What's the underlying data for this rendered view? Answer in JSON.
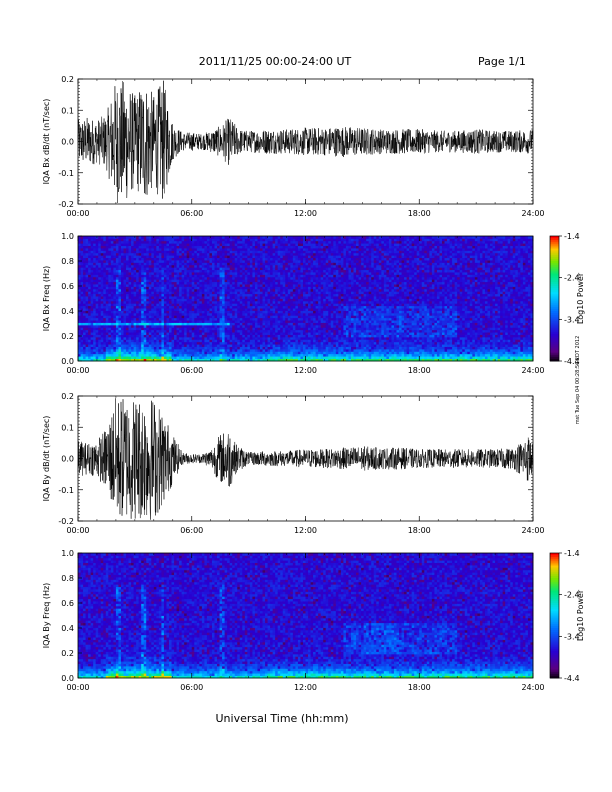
{
  "header": {
    "title": "2011/11/25  00:00-24:00 UT",
    "page": "Page 1/1"
  },
  "footer": {
    "xlabel": "Universal Time (hh:mm)"
  },
  "side_note": "mst Tue Sep 04 00:28:56 EDT 2012",
  "chart_data": [
    {
      "type": "line",
      "ylabel": "IQA Bx dB/dt (nT/sec)",
      "xlabel": "",
      "x_ticks": [
        "00:00",
        "06:00",
        "12:00",
        "18:00",
        "24:00"
      ],
      "xlim": [
        0,
        24
      ],
      "ylim": [
        -0.2,
        0.2
      ],
      "y_ticks": [
        "0.2",
        "0.1",
        "0.0",
        "-0.1",
        "-0.2"
      ],
      "series": [
        {
          "values_note": "",
          "envelope": [
            [
              0,
              0.07
            ],
            [
              0.5,
              0.08
            ],
            [
              1,
              0.07
            ],
            [
              1.5,
              0.09
            ],
            [
              2,
              0.2
            ],
            [
              2.5,
              0.2
            ],
            [
              3,
              0.15
            ],
            [
              3.5,
              0.2
            ],
            [
              4,
              0.15
            ],
            [
              4.5,
              0.2
            ],
            [
              5,
              0.06
            ],
            [
              5.5,
              0.03
            ],
            [
              6,
              0.03
            ],
            [
              6.5,
              0.025
            ],
            [
              7,
              0.035
            ],
            [
              7.5,
              0.05
            ],
            [
              8,
              0.08
            ],
            [
              8.5,
              0.04
            ],
            [
              9,
              0.035
            ],
            [
              10,
              0.04
            ],
            [
              11,
              0.04
            ],
            [
              12,
              0.045
            ],
            [
              13,
              0.045
            ],
            [
              14,
              0.05
            ],
            [
              15,
              0.045
            ],
            [
              16,
              0.04
            ],
            [
              17,
              0.04
            ],
            [
              18,
              0.04
            ],
            [
              19,
              0.035
            ],
            [
              20,
              0.035
            ],
            [
              21,
              0.04
            ],
            [
              22,
              0.035
            ],
            [
              23,
              0.035
            ],
            [
              24,
              0.04
            ]
          ]
        }
      ]
    },
    {
      "type": "heatmap",
      "ylabel": "IQA Bx Freq (Hz)",
      "x_ticks": [
        "00:00",
        "06:00",
        "12:00",
        "18:00",
        "24:00"
      ],
      "xlim": [
        0,
        24
      ],
      "ylim": [
        0,
        1.0
      ],
      "y_ticks": [
        "1.0",
        "0.8",
        "0.6",
        "0.4",
        "0.2",
        "0.0"
      ],
      "colorbar": {
        "label": "Log10 Power",
        "ticks": [
          "-1.4",
          "-2.4",
          "-3.4",
          "-4.4"
        ],
        "range": [
          -4.4,
          -1.4
        ]
      }
    },
    {
      "type": "line",
      "ylabel": "IQA By dB/dt (nT/sec)",
      "x_ticks": [
        "00:00",
        "06:00",
        "12:00",
        "18:00",
        "24:00"
      ],
      "xlim": [
        0,
        24
      ],
      "ylim": [
        -0.2,
        0.2
      ],
      "y_ticks": [
        "0.2",
        "0.1",
        "0.0",
        "-0.1",
        "-0.2"
      ],
      "series": [
        {
          "envelope": [
            [
              0,
              0.06
            ],
            [
              0.5,
              0.05
            ],
            [
              1,
              0.06
            ],
            [
              1.5,
              0.1
            ],
            [
              2,
              0.2
            ],
            [
              2.5,
              0.2
            ],
            [
              3,
              0.2
            ],
            [
              3.5,
              0.2
            ],
            [
              4,
              0.2
            ],
            [
              4.5,
              0.15
            ],
            [
              5,
              0.08
            ],
            [
              5.5,
              0.02
            ],
            [
              6,
              0.015
            ],
            [
              6.5,
              0.015
            ],
            [
              7,
              0.03
            ],
            [
              7.5,
              0.08
            ],
            [
              8,
              0.1
            ],
            [
              8.3,
              0.05
            ],
            [
              9,
              0.02
            ],
            [
              10,
              0.025
            ],
            [
              11,
              0.025
            ],
            [
              12,
              0.03
            ],
            [
              13,
              0.03
            ],
            [
              14,
              0.035
            ],
            [
              15,
              0.04
            ],
            [
              16,
              0.035
            ],
            [
              17,
              0.035
            ],
            [
              18,
              0.03
            ],
            [
              19,
              0.03
            ],
            [
              20,
              0.03
            ],
            [
              21,
              0.03
            ],
            [
              22,
              0.03
            ],
            [
              23,
              0.035
            ],
            [
              23.8,
              0.08
            ],
            [
              24,
              0.04
            ]
          ]
        }
      ]
    },
    {
      "type": "heatmap",
      "ylabel": "IQA By Freq (Hz)",
      "x_ticks": [
        "00:00",
        "06:00",
        "12:00",
        "18:00",
        "24:00"
      ],
      "xlim": [
        0,
        24
      ],
      "ylim": [
        0,
        1.0
      ],
      "y_ticks": [
        "1.0",
        "0.8",
        "0.6",
        "0.4",
        "0.2",
        "0.0"
      ],
      "colorbar": {
        "label": "Log10 Power",
        "ticks": [
          "-1.4",
          "-2.4",
          "-3.4",
          "-4.4"
        ],
        "range": [
          -4.4,
          -1.4
        ]
      }
    }
  ]
}
